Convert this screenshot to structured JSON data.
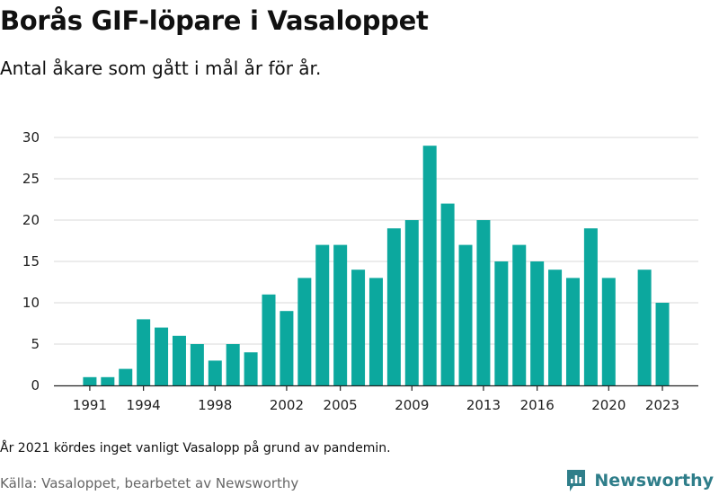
{
  "title": "Borås GIF-löpare i Vasaloppet",
  "subtitle": "Antal åkare som gått i mål år för år.",
  "footnote": "År 2021 kördes inget vanligt Vasalopp på grund av pandemin.",
  "source": "Källa: Vasaloppet, bearbetet av Newsworthy",
  "brand": {
    "name": "Newsworthy",
    "icon": "newsworthy-logo-icon",
    "color": "#2f7e8a"
  },
  "chart_data": {
    "type": "bar",
    "categories": [
      "1990",
      "1991",
      "1992",
      "1993",
      "1994",
      "1995",
      "1996",
      "1997",
      "1998",
      "1999",
      "2000",
      "2001",
      "2002",
      "2003",
      "2004",
      "2005",
      "2006",
      "2007",
      "2008",
      "2009",
      "2010",
      "2011",
      "2012",
      "2013",
      "2014",
      "2015",
      "2016",
      "2017",
      "2018",
      "2019",
      "2020",
      "2021",
      "2022",
      "2023"
    ],
    "values": [
      null,
      1,
      1,
      2,
      8,
      7,
      6,
      5,
      3,
      5,
      4,
      11,
      9,
      13,
      17,
      17,
      14,
      13,
      19,
      20,
      29,
      22,
      17,
      20,
      15,
      17,
      15,
      14,
      13,
      19,
      13,
      null,
      14,
      10
    ],
    "x_tick_labels": [
      "1991",
      "1994",
      "1998",
      "2002",
      "2005",
      "2009",
      "2013",
      "2016",
      "2020",
      "2023"
    ],
    "y_ticks": [
      0,
      5,
      10,
      15,
      20,
      25,
      30
    ],
    "ylim": [
      0,
      30
    ],
    "color": "#0ca89e",
    "grid": true,
    "title": "Borås GIF-löpare i Vasaloppet",
    "xlabel": "",
    "ylabel": ""
  }
}
